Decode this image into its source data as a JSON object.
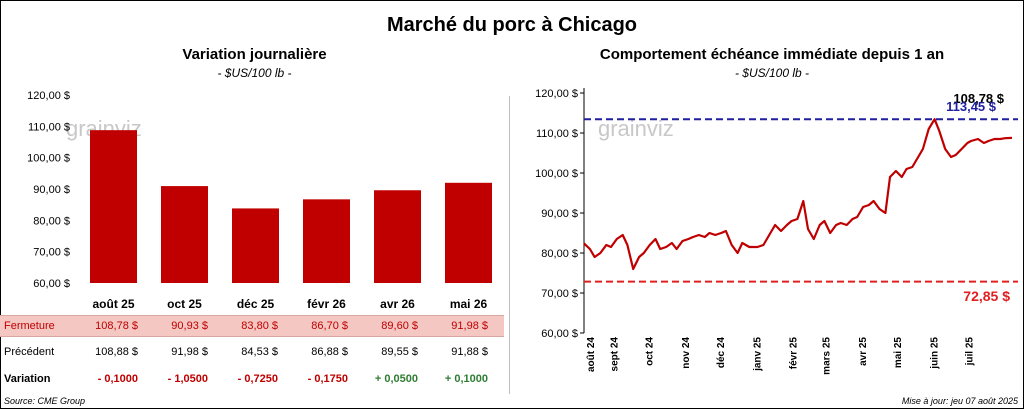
{
  "title": "Marché du porc à Chicago",
  "left_panel": {
    "title": "Variation journalière",
    "subtitle": "- $US/100 lb -",
    "row_labels": {
      "close": "Fermeture",
      "previous": "Précédent",
      "change": "Variation"
    },
    "closes": [
      "108,78  $",
      "90,93  $",
      "83,80  $",
      "86,70  $",
      "89,60  $",
      "91,98  $"
    ],
    "previous": [
      "108,88  $",
      "91,98  $",
      "84,53  $",
      "86,88  $",
      "89,55  $",
      "91,88  $"
    ],
    "changes": [
      "- 0,1000",
      "- 1,0500",
      "- 0,7250",
      "- 0,1750",
      "+ 0,0500",
      "+ 0,1000"
    ]
  },
  "right_panel": {
    "title": "Comportement  échéance immédiate depuis 1 an",
    "subtitle": "- $US/100 lb -",
    "high_label": "113,45 $",
    "low_label": "72,85 $",
    "last_label": "108,78 $"
  },
  "logo_text": "grainviz",
  "footer": {
    "source": "Source: CME Group",
    "updated": "Mise à jour: jeu 07 août 2025"
  },
  "colors": {
    "bar": "#c00000",
    "line": "#c00000",
    "high_line": "#1f1fa0",
    "low_line": "#e02020",
    "fermeture_row_bg": "#f4c7c3",
    "positive": "#2e7d32",
    "negative": "#c00000"
  },
  "chart_data": [
    {
      "type": "bar",
      "categories": [
        "août 25",
        "oct 25",
        "déc 25",
        "févr 26",
        "avr 26",
        "mai 26"
      ],
      "values": [
        108.78,
        90.93,
        83.8,
        86.7,
        89.6,
        91.98
      ],
      "title": "Variation journalière",
      "ylabel": "",
      "ylim": [
        60,
        120
      ],
      "yticks": [
        "60,00 $",
        "70,00 $",
        "80,00 $",
        "90,00 $",
        "100,00 $",
        "110,00 $",
        "120,00 $"
      ],
      "grid": false
    },
    {
      "type": "line",
      "title": "Comportement  échéance immédiate depuis 1 an",
      "x_months": [
        "août 24",
        "sept 24",
        "oct 24",
        "nov 24",
        "déc 24",
        "janv 25",
        "févr 25",
        "mars 25",
        "avr 25",
        "mai 25",
        "juin 25",
        "juil 25"
      ],
      "ylim": [
        60,
        120
      ],
      "yticks": [
        "60,00 $",
        "70,00 $",
        "80,00 $",
        "90,00 $",
        "100,00 $",
        "110,00 $",
        "120,00 $"
      ],
      "series": [
        {
          "x": [
            "2024-08-07",
            "2024-08-12",
            "2024-08-16",
            "2024-08-21",
            "2024-08-26",
            "2024-08-30",
            "2024-09-04",
            "2024-09-09",
            "2024-09-13",
            "2024-09-18",
            "2024-09-23",
            "2024-09-27",
            "2024-10-02",
            "2024-10-07",
            "2024-10-11",
            "2024-10-16",
            "2024-10-21",
            "2024-10-25",
            "2024-10-30",
            "2024-11-04",
            "2024-11-08",
            "2024-11-13",
            "2024-11-18",
            "2024-11-22",
            "2024-11-27",
            "2024-12-02",
            "2024-12-06",
            "2024-12-11",
            "2024-12-16",
            "2024-12-20",
            "2024-12-26",
            "2025-01-02",
            "2025-01-07",
            "2025-01-13",
            "2025-01-17",
            "2025-01-22",
            "2025-01-27",
            "2025-01-31",
            "2025-02-05",
            "2025-02-10",
            "2025-02-14",
            "2025-02-19",
            "2025-02-24",
            "2025-02-28",
            "2025-03-05",
            "2025-03-10",
            "2025-03-14",
            "2025-03-19",
            "2025-03-24",
            "2025-03-28",
            "2025-04-02",
            "2025-04-07",
            "2025-04-11",
            "2025-04-16",
            "2025-04-21",
            "2025-04-25",
            "2025-04-30",
            "2025-05-05",
            "2025-05-09",
            "2025-05-14",
            "2025-05-19",
            "2025-05-23",
            "2025-05-28",
            "2025-06-02",
            "2025-06-06",
            "2025-06-11",
            "2025-06-16",
            "2025-06-20",
            "2025-06-25",
            "2025-06-30",
            "2025-07-03",
            "2025-07-09",
            "2025-07-14",
            "2025-07-18",
            "2025-07-23",
            "2025-07-28",
            "2025-08-01",
            "2025-08-07"
          ],
          "y": [
            82.4,
            81.0,
            79.0,
            80.0,
            82.0,
            81.5,
            83.5,
            84.5,
            82.0,
            76.0,
            79.0,
            80.0,
            82.0,
            83.5,
            81.0,
            81.5,
            82.5,
            81.0,
            83.0,
            83.5,
            84.0,
            84.5,
            84.0,
            85.0,
            84.5,
            85.0,
            85.5,
            82.0,
            80.0,
            82.5,
            81.5,
            81.5,
            82.0,
            85.0,
            87.0,
            85.5,
            87.0,
            88.0,
            88.5,
            93.0,
            86.0,
            83.5,
            87.0,
            88.0,
            85.0,
            87.0,
            87.5,
            87.0,
            88.5,
            89.0,
            91.5,
            92.0,
            93.0,
            91.0,
            90.0,
            99.0,
            100.5,
            99.0,
            101.0,
            101.5,
            104.0,
            106.0,
            111.0,
            113.45,
            110.5,
            106.0,
            104.0,
            104.5,
            106.0,
            107.5,
            108.0,
            108.5,
            107.5,
            108.0,
            108.5,
            108.5,
            108.7,
            108.78
          ]
        }
      ],
      "high": 113.45,
      "low": 72.85,
      "last": 108.78,
      "grid": false
    }
  ]
}
